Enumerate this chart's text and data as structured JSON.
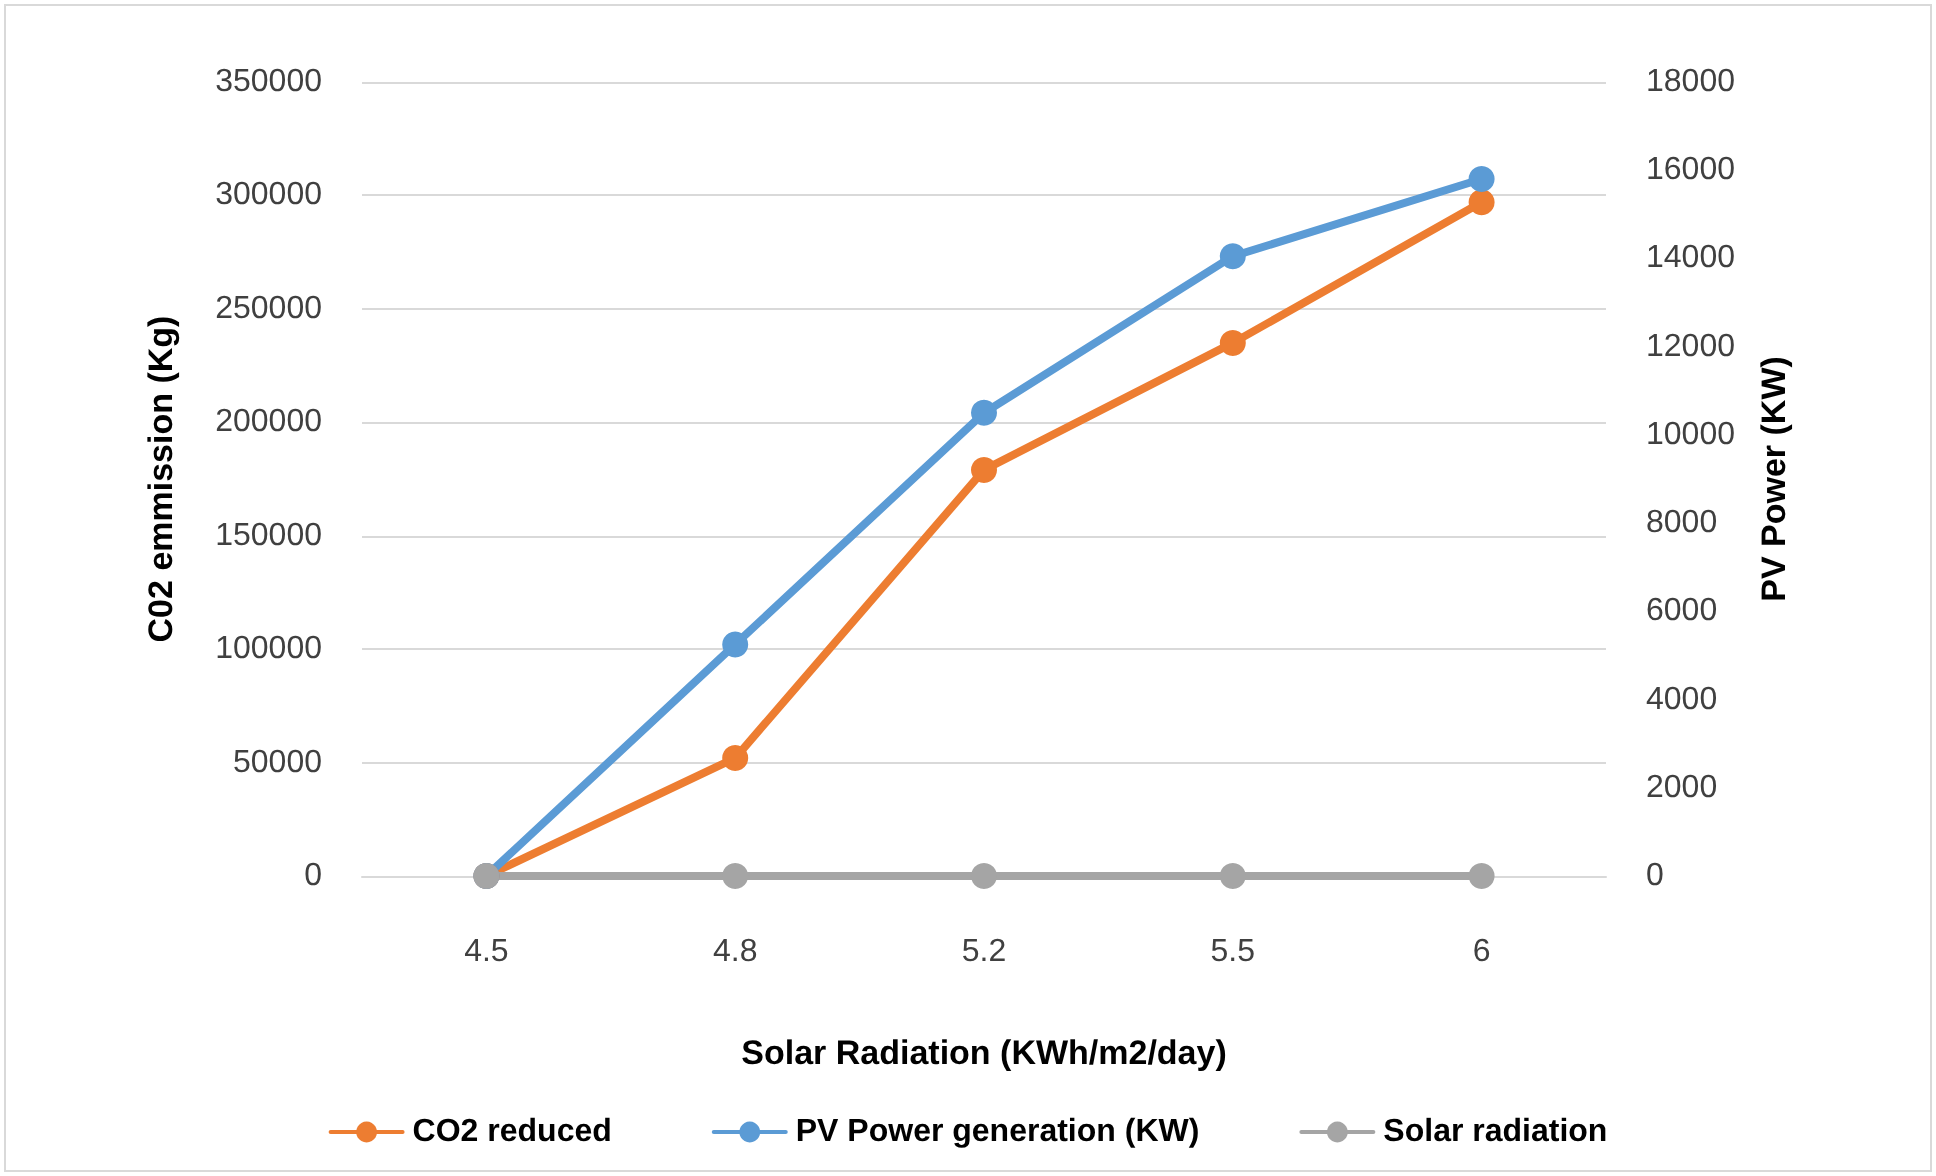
{
  "chart_data": {
    "type": "line",
    "xlabel": "Solar Radiation (KWh/m2/day)",
    "ylabel": "C02 emmission (Kg)",
    "y2label": "PV Power (KW)",
    "categories": [
      "4.5",
      "4.8",
      "5.2",
      "5.5",
      "6"
    ],
    "series": [
      {
        "name": "CO2 reduced",
        "color": "#ed7d31",
        "values": [
          0,
          52000,
          179000,
          235000,
          297000
        ]
      },
      {
        "name": "PV Power generation (KW)",
        "color": "#5b9bd5",
        "axis": "y2",
        "values": [
          0,
          5250,
          10500,
          14050,
          15800
        ]
      },
      {
        "name": "Solar radiation",
        "color": "#a5a5a5",
        "values": [
          0,
          0,
          0,
          0,
          0
        ]
      }
    ],
    "ylim": [
      0,
      350000
    ],
    "yticks": [
      0,
      50000,
      100000,
      150000,
      200000,
      250000,
      300000,
      350000
    ],
    "y2lim": [
      0,
      18000
    ],
    "y2ticks": [
      0,
      2000,
      4000,
      6000,
      8000,
      10000,
      12000,
      14000,
      16000,
      18000
    ],
    "grid": "y",
    "legend": "bottom",
    "marker": "circle",
    "line_style": "solid"
  }
}
